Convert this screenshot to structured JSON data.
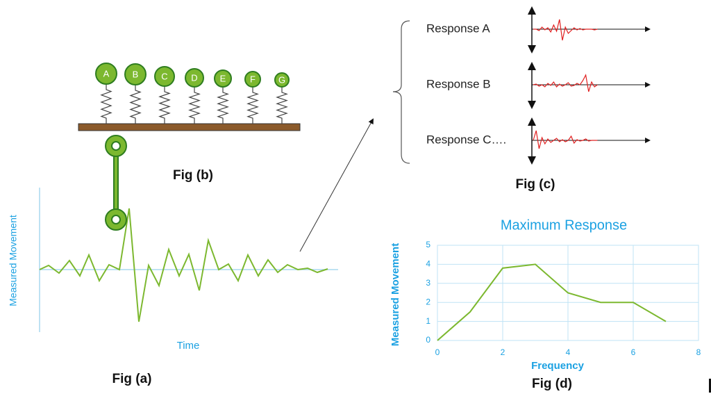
{
  "fig_a": {
    "y_label": "Measured Movement",
    "x_label": "Time",
    "caption": "Fig (a)"
  },
  "fig_b": {
    "nodes": [
      {
        "label": "A"
      },
      {
        "label": "B"
      },
      {
        "label": "C"
      },
      {
        "label": "D"
      },
      {
        "label": "E"
      },
      {
        "label": "F"
      },
      {
        "label": "G"
      }
    ],
    "caption": "Fig (b)"
  },
  "fig_c": {
    "responses": [
      {
        "label": "Response A"
      },
      {
        "label": "Response B"
      },
      {
        "label": "Response C…."
      }
    ],
    "caption": "Fig (c)"
  },
  "chart_data": {
    "type": "line",
    "title": "Maximum Response",
    "x_label": "Frequency",
    "y_label": "Measured Movement",
    "caption": "Fig (d)",
    "x": [
      0,
      1,
      2,
      3,
      4,
      5,
      6,
      7
    ],
    "values": [
      0,
      1.5,
      3.8,
      4,
      2.5,
      2,
      2,
      1
    ],
    "color": "#7cb82f",
    "xlim": [
      0,
      8
    ],
    "xticks": [
      0,
      2,
      4,
      6,
      8
    ],
    "ylim": [
      0,
      5
    ],
    "yticks": [
      0,
      1,
      2,
      3,
      4,
      5
    ],
    "grid": true
  }
}
